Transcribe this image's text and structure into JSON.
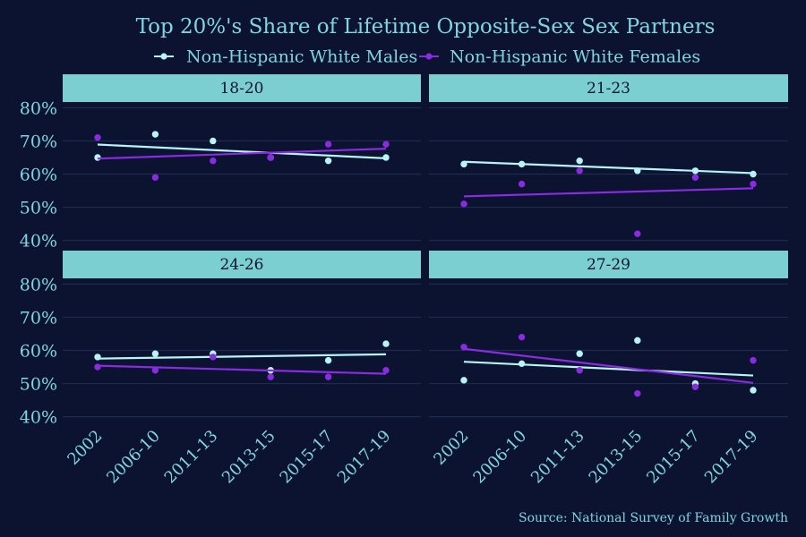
{
  "title": "Top 20%'s Share of Lifetime Opposite-Sex Sex Partners",
  "source": "Source: National Survey of Family Growth",
  "colors": {
    "background": "#0b1330",
    "text": "#7fd6e0",
    "grid": "#1f2b4e",
    "strip": "#7ccfd0",
    "strip_text": "#0b1330",
    "males": "#b8f4f7",
    "females": "#8a2be2"
  },
  "chart_data": {
    "type": "scatter",
    "legend_position": "top",
    "legend": [
      "Non-Hispanic White Males",
      "Non-Hispanic White Females"
    ],
    "categories": [
      "2002",
      "2006-10",
      "2011-13",
      "2013-15",
      "2015-17",
      "2017-19"
    ],
    "y_ticks": [
      "40%",
      "50%",
      "60%",
      "70%",
      "80%"
    ],
    "ylim": [
      0.38,
      0.82
    ],
    "grid": true,
    "trend_lines": "linear",
    "panels": [
      {
        "label": "18-20",
        "series": [
          {
            "name": "Non-Hispanic White Males",
            "values": [
              0.65,
              0.72,
              0.7,
              0.65,
              0.64,
              0.65
            ]
          },
          {
            "name": "Non-Hispanic White Females",
            "values": [
              0.71,
              0.59,
              0.64,
              0.65,
              0.69,
              0.69
            ]
          }
        ]
      },
      {
        "label": "21-23",
        "series": [
          {
            "name": "Non-Hispanic White Males",
            "values": [
              0.63,
              0.63,
              0.64,
              0.61,
              0.61,
              0.6
            ]
          },
          {
            "name": "Non-Hispanic White Females",
            "values": [
              0.51,
              0.57,
              0.61,
              0.42,
              0.59,
              0.57
            ]
          }
        ]
      },
      {
        "label": "24-26",
        "series": [
          {
            "name": "Non-Hispanic White Males",
            "values": [
              0.58,
              0.59,
              0.59,
              0.54,
              0.57,
              0.62
            ]
          },
          {
            "name": "Non-Hispanic White Females",
            "values": [
              0.55,
              0.54,
              0.58,
              0.52,
              0.52,
              0.54
            ]
          }
        ]
      },
      {
        "label": "27-29",
        "series": [
          {
            "name": "Non-Hispanic White Males",
            "values": [
              0.51,
              0.56,
              0.59,
              0.63,
              0.5,
              0.48
            ]
          },
          {
            "name": "Non-Hispanic White Females",
            "values": [
              0.61,
              0.64,
              0.54,
              0.47,
              0.49,
              0.57
            ]
          }
        ]
      }
    ]
  }
}
